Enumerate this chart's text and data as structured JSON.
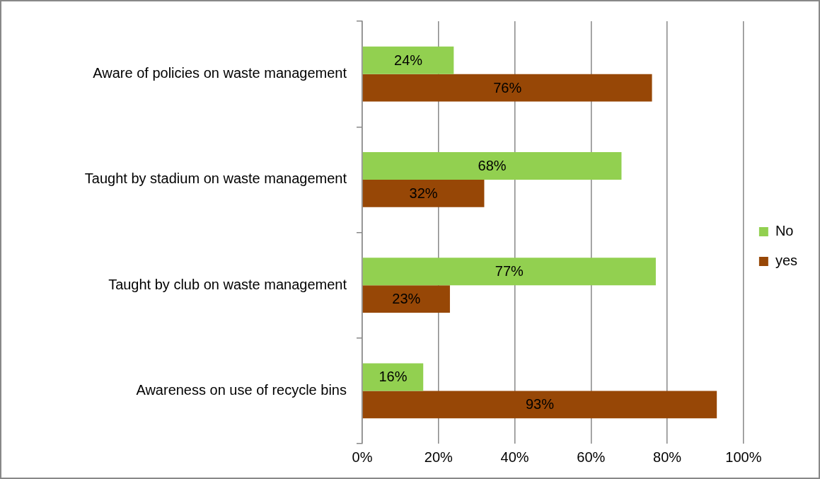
{
  "chart_data": {
    "type": "bar",
    "orientation": "horizontal",
    "categories": [
      "Aware of policies on waste management",
      "Taught by stadium on waste management",
      "Taught by club on waste management",
      "Awareness on use of recycle bins"
    ],
    "series": [
      {
        "name": "No",
        "color": "#92d050",
        "values": [
          24,
          68,
          77,
          16
        ],
        "value_labels": [
          "24%",
          "68%",
          "77%",
          "16%"
        ]
      },
      {
        "name": "yes",
        "color": "#974706",
        "values": [
          76,
          32,
          23,
          93
        ],
        "value_labels": [
          "76%",
          "32%",
          "23%",
          "93%"
        ]
      }
    ],
    "xlim": [
      0,
      100
    ],
    "xticks": [
      {
        "value": 0,
        "label": "0%"
      },
      {
        "value": 20,
        "label": "20%"
      },
      {
        "value": 40,
        "label": "40%"
      },
      {
        "value": 60,
        "label": "60%"
      },
      {
        "value": 80,
        "label": "80%"
      },
      {
        "value": 100,
        "label": "100%"
      }
    ],
    "grid": "x",
    "legend": "right"
  }
}
